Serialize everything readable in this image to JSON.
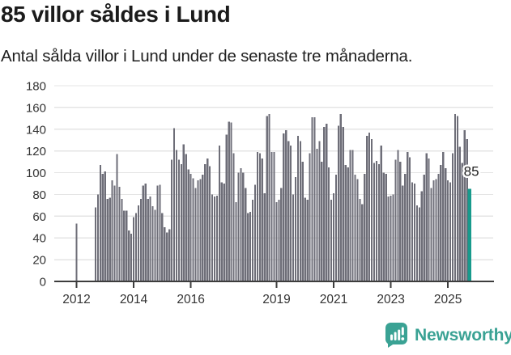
{
  "header": {
    "title": "85 villor såldes i Lund",
    "subtitle": "Antal sålda villor i Lund under de senaste tre månaderna."
  },
  "chart_data": {
    "type": "bar",
    "title": "85 villor såldes i Lund",
    "subtitle": "Antal sålda villor i Lund under de senaste tre månaderna.",
    "x_start": "2012-01",
    "x_freq": "monthly",
    "ylabel": "",
    "xlabel": "",
    "ylim": [
      0,
      180
    ],
    "grid": true,
    "legend": false,
    "y_ticks": [
      0,
      20,
      40,
      60,
      80,
      100,
      120,
      140,
      160,
      180
    ],
    "x_ticks": [
      {
        "label": "2012",
        "index": 0
      },
      {
        "label": "2014",
        "index": 24
      },
      {
        "label": "2016",
        "index": 48
      },
      {
        "label": "2019",
        "index": 84
      },
      {
        "label": "2021",
        "index": 108
      },
      {
        "label": "2023",
        "index": 132
      },
      {
        "label": "2025",
        "index": 156
      }
    ],
    "values": [
      53,
      null,
      null,
      null,
      null,
      null,
      null,
      null,
      68,
      80,
      107,
      99,
      101,
      76,
      77,
      93,
      88,
      117,
      87,
      76,
      65,
      65,
      47,
      44,
      59,
      63,
      70,
      76,
      88,
      90,
      76,
      78,
      69,
      66,
      88,
      89,
      63,
      50,
      45,
      48,
      112,
      141,
      121,
      112,
      108,
      126,
      117,
      103,
      99,
      95,
      86,
      93,
      94,
      98,
      108,
      113,
      106,
      80,
      78,
      79,
      125,
      91,
      90,
      135,
      147,
      146,
      118,
      73,
      100,
      104,
      100,
      86,
      63,
      64,
      75,
      89,
      119,
      118,
      113,
      81,
      152,
      154,
      119,
      119,
      73,
      75,
      86,
      136,
      139,
      129,
      125,
      80,
      96,
      134,
      129,
      110,
      77,
      75,
      118,
      151,
      151,
      122,
      129,
      110,
      142,
      145,
      105,
      75,
      81,
      98,
      143,
      154,
      142,
      107,
      105,
      121,
      121,
      98,
      94,
      76,
      71,
      99,
      134,
      137,
      131,
      109,
      111,
      108,
      125,
      100,
      99,
      78,
      79,
      80,
      112,
      121,
      110,
      88,
      99,
      119,
      114,
      91,
      90,
      70,
      68,
      83,
      98,
      118,
      113,
      86,
      93,
      94,
      99,
      107,
      119,
      104,
      93,
      91,
      118,
      154,
      152,
      124,
      109,
      139,
      131,
      85
    ],
    "highlight": {
      "index": 165,
      "value": 85,
      "label": "85"
    }
  },
  "footer": {
    "brand": "Newsworthy"
  },
  "colors": {
    "bar": "#6e6e78",
    "accent": "#189a8c",
    "logo_teal": "#3aa294",
    "grid": "#e4e4e4",
    "axis": "#3d3d3d",
    "tick_text": "#333333",
    "annotation_text": "#222222"
  }
}
